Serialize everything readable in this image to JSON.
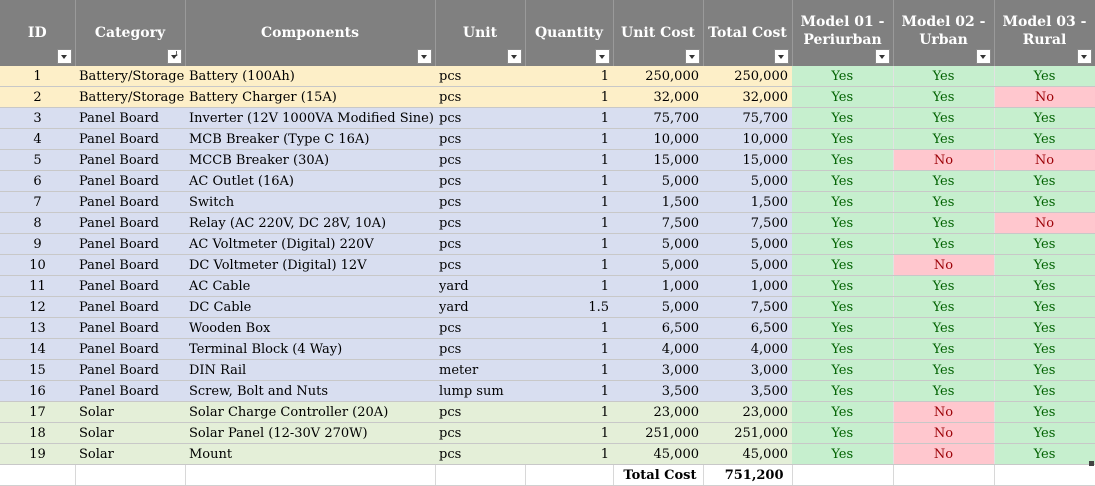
{
  "headers": {
    "id": "ID",
    "category": "Category",
    "components": "Components",
    "unit": "Unit",
    "quantity": "Quantity",
    "unit_cost": "Unit Cost",
    "total_cost": "Total Cost",
    "model1_line1": "Model 01 -",
    "model1_line2": "Periurban",
    "model2_line1": "Model 02 -",
    "model2_line2": "Urban",
    "model3_line1": "Model 03 -",
    "model3_line2": "Rural"
  },
  "rows": [
    {
      "id": "1",
      "category": "Battery/Storage",
      "component": "Battery (100Ah)",
      "unit": "pcs",
      "quantity": "1",
      "unit_cost": "250,000",
      "total_cost": "250,000",
      "m1": "Yes",
      "m2": "Yes",
      "m3": "Yes"
    },
    {
      "id": "2",
      "category": "Battery/Storage",
      "component": "Battery Charger (15A)",
      "unit": "pcs",
      "quantity": "1",
      "unit_cost": "32,000",
      "total_cost": "32,000",
      "m1": "Yes",
      "m2": "Yes",
      "m3": "No"
    },
    {
      "id": "3",
      "category": "Panel Board",
      "component": "Inverter (12V 1000VA Modified Sine)",
      "unit": "pcs",
      "quantity": "1",
      "unit_cost": "75,700",
      "total_cost": "75,700",
      "m1": "Yes",
      "m2": "Yes",
      "m3": "Yes"
    },
    {
      "id": "4",
      "category": "Panel Board",
      "component": "MCB Breaker (Type C 16A)",
      "unit": "pcs",
      "quantity": "1",
      "unit_cost": "10,000",
      "total_cost": "10,000",
      "m1": "Yes",
      "m2": "Yes",
      "m3": "Yes"
    },
    {
      "id": "5",
      "category": "Panel Board",
      "component": "MCCB Breaker (30A)",
      "unit": "pcs",
      "quantity": "1",
      "unit_cost": "15,000",
      "total_cost": "15,000",
      "m1": "Yes",
      "m2": "No",
      "m3": "No"
    },
    {
      "id": "6",
      "category": "Panel Board",
      "component": "AC Outlet (16A)",
      "unit": "pcs",
      "quantity": "1",
      "unit_cost": "5,000",
      "total_cost": "5,000",
      "m1": "Yes",
      "m2": "Yes",
      "m3": "Yes"
    },
    {
      "id": "7",
      "category": "Panel Board",
      "component": "Switch",
      "unit": "pcs",
      "quantity": "1",
      "unit_cost": "1,500",
      "total_cost": "1,500",
      "m1": "Yes",
      "m2": "Yes",
      "m3": "Yes"
    },
    {
      "id": "8",
      "category": "Panel Board",
      "component": "Relay (AC 220V, DC 28V, 10A)",
      "unit": "pcs",
      "quantity": "1",
      "unit_cost": "7,500",
      "total_cost": "7,500",
      "m1": "Yes",
      "m2": "Yes",
      "m3": "No"
    },
    {
      "id": "9",
      "category": "Panel Board",
      "component": "AC Voltmeter (Digital) 220V",
      "unit": "pcs",
      "quantity": "1",
      "unit_cost": "5,000",
      "total_cost": "5,000",
      "m1": "Yes",
      "m2": "Yes",
      "m3": "Yes"
    },
    {
      "id": "10",
      "category": "Panel Board",
      "component": "DC Voltmeter (Digital) 12V",
      "unit": "pcs",
      "quantity": "1",
      "unit_cost": "5,000",
      "total_cost": "5,000",
      "m1": "Yes",
      "m2": "No",
      "m3": "Yes"
    },
    {
      "id": "11",
      "category": "Panel Board",
      "component": "AC Cable",
      "unit": "yard",
      "quantity": "1",
      "unit_cost": "1,000",
      "total_cost": "1,000",
      "m1": "Yes",
      "m2": "Yes",
      "m3": "Yes"
    },
    {
      "id": "12",
      "category": "Panel Board",
      "component": "DC Cable",
      "unit": "yard",
      "quantity": "1.5",
      "unit_cost": "5,000",
      "total_cost": "7,500",
      "m1": "Yes",
      "m2": "Yes",
      "m3": "Yes"
    },
    {
      "id": "13",
      "category": "Panel Board",
      "component": "Wooden Box",
      "unit": "pcs",
      "quantity": "1",
      "unit_cost": "6,500",
      "total_cost": "6,500",
      "m1": "Yes",
      "m2": "Yes",
      "m3": "Yes"
    },
    {
      "id": "14",
      "category": "Panel Board",
      "component": "Terminal Block (4 Way)",
      "unit": "pcs",
      "quantity": "1",
      "unit_cost": "4,000",
      "total_cost": "4,000",
      "m1": "Yes",
      "m2": "Yes",
      "m3": "Yes"
    },
    {
      "id": "15",
      "category": "Panel Board",
      "component": "DIN Rail",
      "unit": "meter",
      "quantity": "1",
      "unit_cost": "3,000",
      "total_cost": "3,000",
      "m1": "Yes",
      "m2": "Yes",
      "m3": "Yes"
    },
    {
      "id": "16",
      "category": "Panel Board",
      "component": "Screw, Bolt and Nuts",
      "unit": "lump sum",
      "quantity": "1",
      "unit_cost": "3,500",
      "total_cost": "3,500",
      "m1": "Yes",
      "m2": "Yes",
      "m3": "Yes"
    },
    {
      "id": "17",
      "category": "Solar",
      "component": "Solar Charge Controller (20A)",
      "unit": "pcs",
      "quantity": "1",
      "unit_cost": "23,000",
      "total_cost": "23,000",
      "m1": "Yes",
      "m2": "No",
      "m3": "Yes"
    },
    {
      "id": "18",
      "category": "Solar",
      "component": "Solar Panel (12-30V 270W)",
      "unit": "pcs",
      "quantity": "1",
      "unit_cost": "251,000",
      "total_cost": "251,000",
      "m1": "Yes",
      "m2": "No",
      "m3": "Yes"
    },
    {
      "id": "19",
      "category": "Solar",
      "component": "Mount",
      "unit": "pcs",
      "quantity": "1",
      "unit_cost": "45,000",
      "total_cost": "45,000",
      "m1": "Yes",
      "m2": "No",
      "m3": "Yes"
    }
  ],
  "total": {
    "label": "Total Cost",
    "value": "751,200"
  },
  "colors": {
    "header_bg": "#808080",
    "battery_row": "#fdefc8",
    "panel_row": "#d8def0",
    "solar_row": "#e4efd8",
    "yes_bg": "#c6efce",
    "yes_text": "#006100",
    "no_bg": "#ffc7ce",
    "no_text": "#9c0006"
  },
  "icons": {
    "filter": "filter-dropdown-icon",
    "sorted_filter": "sorted-filter-dropdown-icon"
  }
}
